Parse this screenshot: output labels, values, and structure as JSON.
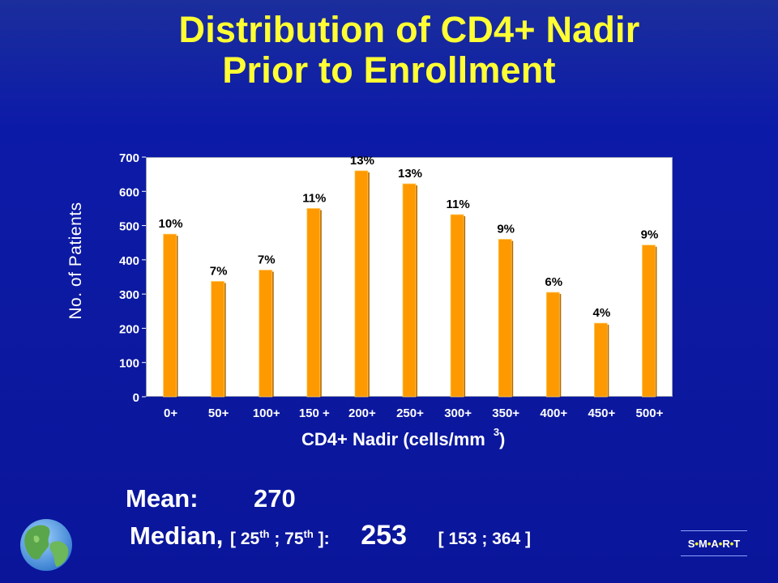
{
  "title": {
    "line1": "Distribution of CD4+ Nadir",
    "line2": "Prior to Enrollment"
  },
  "chart_data": {
    "type": "bar",
    "categories": [
      "0+",
      "50+",
      "100+",
      "150 +",
      "200+",
      "250+",
      "300+",
      "350+",
      "400+",
      "450+",
      "500+"
    ],
    "values": [
      475,
      337,
      370,
      550,
      660,
      622,
      532,
      460,
      305,
      215,
      443
    ],
    "data_labels": [
      "10%",
      "7%",
      "7%",
      "11%",
      "13%",
      "13%",
      "11%",
      "9%",
      "6%",
      "4%",
      "9%"
    ],
    "ylabel": "No. of Patients",
    "xlabel": "CD4+ Nadir (cells/mm",
    "xlabel_sup": "3",
    "xlabel_end": ")",
    "ylim": [
      0,
      700
    ],
    "yticks": [
      0,
      100,
      200,
      300,
      400,
      500,
      600,
      700
    ],
    "grid": false,
    "bar_color": "#ff9900",
    "plot_background": "#ffffff"
  },
  "stats": {
    "mean_label": "Mean:",
    "mean_value": "270",
    "median_label": "Median,",
    "quartile_prefix": "[ 25",
    "quartile_th1": "th",
    "quartile_mid": " ; 75",
    "quartile_th2": "th",
    "quartile_suffix": " ]:",
    "median_value": "253",
    "range": "[ 153 ; 364 ]"
  },
  "logo": {
    "smart_s": "S",
    "smart_m": "M",
    "smart_a": "A",
    "smart_r": "R",
    "smart_t": "T",
    "dot_color": "#ffff33"
  },
  "colors": {
    "title": "#ffff33",
    "background": "#0c19a0",
    "text": "#ffffff"
  }
}
